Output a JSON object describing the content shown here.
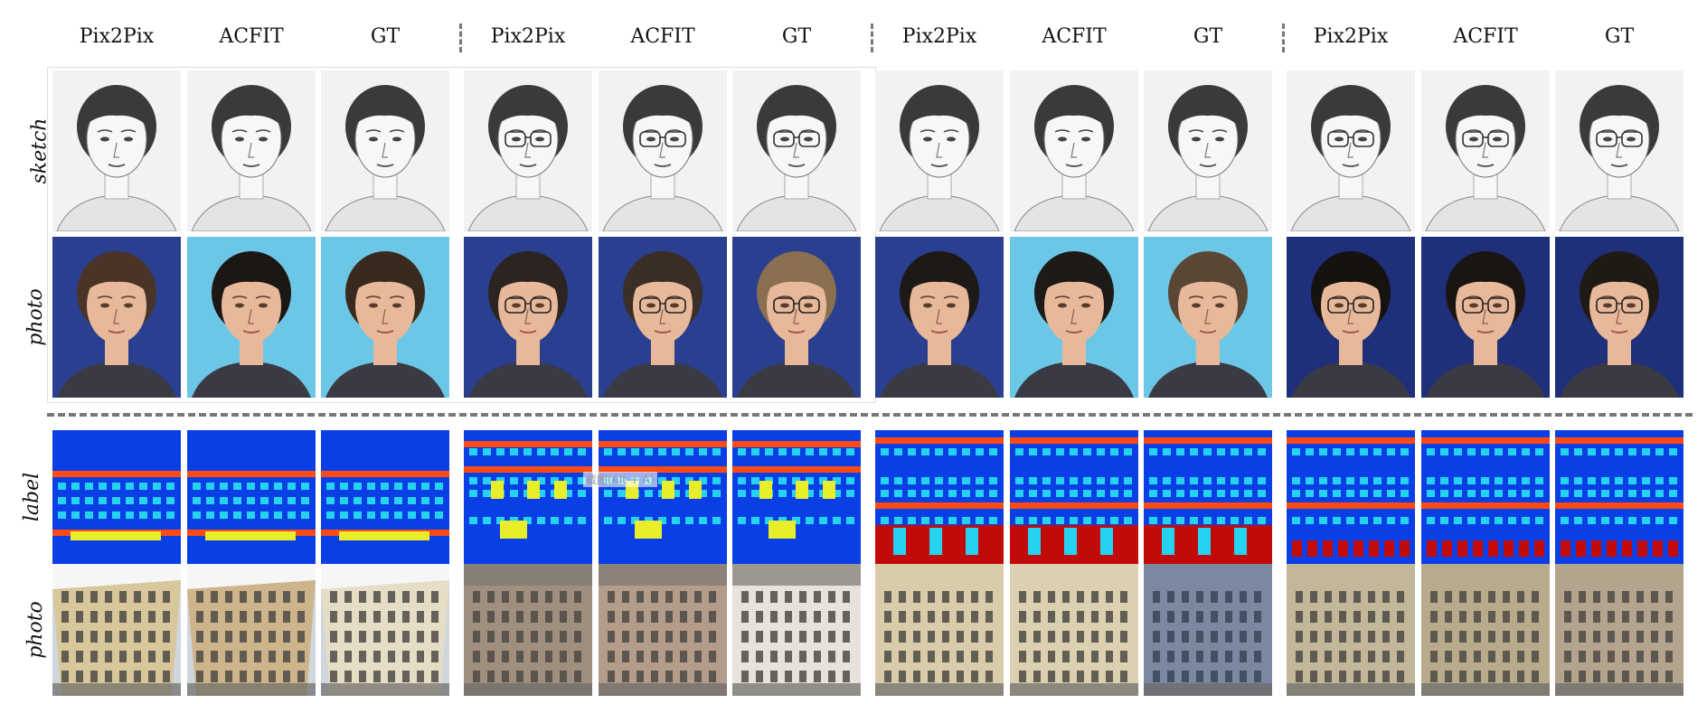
{
  "groups": [
    {
      "headers": [
        "Pix2Pix",
        "ACFIT",
        "GT"
      ]
    },
    {
      "headers": [
        "Pix2Pix",
        "ACFIT",
        "GT"
      ]
    },
    {
      "headers": [
        "Pix2Pix",
        "ACFIT",
        "GT"
      ]
    },
    {
      "headers": [
        "Pix2Pix",
        "ACFIT",
        "GT"
      ]
    }
  ],
  "rows": [
    {
      "label": "sketch",
      "kind": "sketch"
    },
    {
      "label": "photo",
      "kind": "face"
    },
    {
      "label": "label",
      "kind": "label"
    },
    {
      "label": "photo",
      "kind": "facade"
    }
  ],
  "face_bg": [
    "#2a3f8f",
    "#6cc6e6",
    "#6cc6e6",
    "#2a3f8f",
    "#2a3f8f",
    "#2a3f8f",
    "#2a3f8f",
    "#6cc6e6",
    "#6cc6e6",
    "#1f2f7a",
    "#1f2f7a",
    "#1f2f7a"
  ],
  "hair": [
    "#4a3428",
    "#1c1714",
    "#3a2a1e",
    "#2b2420",
    "#3a2e26",
    "#8a7050",
    "#1c1917",
    "#1d1a18",
    "#5a4634",
    "#15120f",
    "#1a1512",
    "#201a15"
  ],
  "glasses": [
    false,
    false,
    false,
    true,
    true,
    true,
    false,
    false,
    false,
    true,
    true,
    true
  ],
  "facade_wall": [
    "#d8c79a",
    "#cdb48a",
    "#e6ddc6",
    "#9e8f7e",
    "#b39c8a",
    "#e8e3da",
    "#d9ccaa",
    "#dbd0b0",
    "#7c88a0",
    "#c3b79a",
    "#b8ab8c",
    "#b3a48e"
  ],
  "label_colors": {
    "bg": "#0b3fe6",
    "band": "#ff4a14",
    "window": "#25d3f0",
    "door": "#c20a0a",
    "balcony": "#e8ee2a"
  },
  "watermark": "截图(Alt + A)"
}
